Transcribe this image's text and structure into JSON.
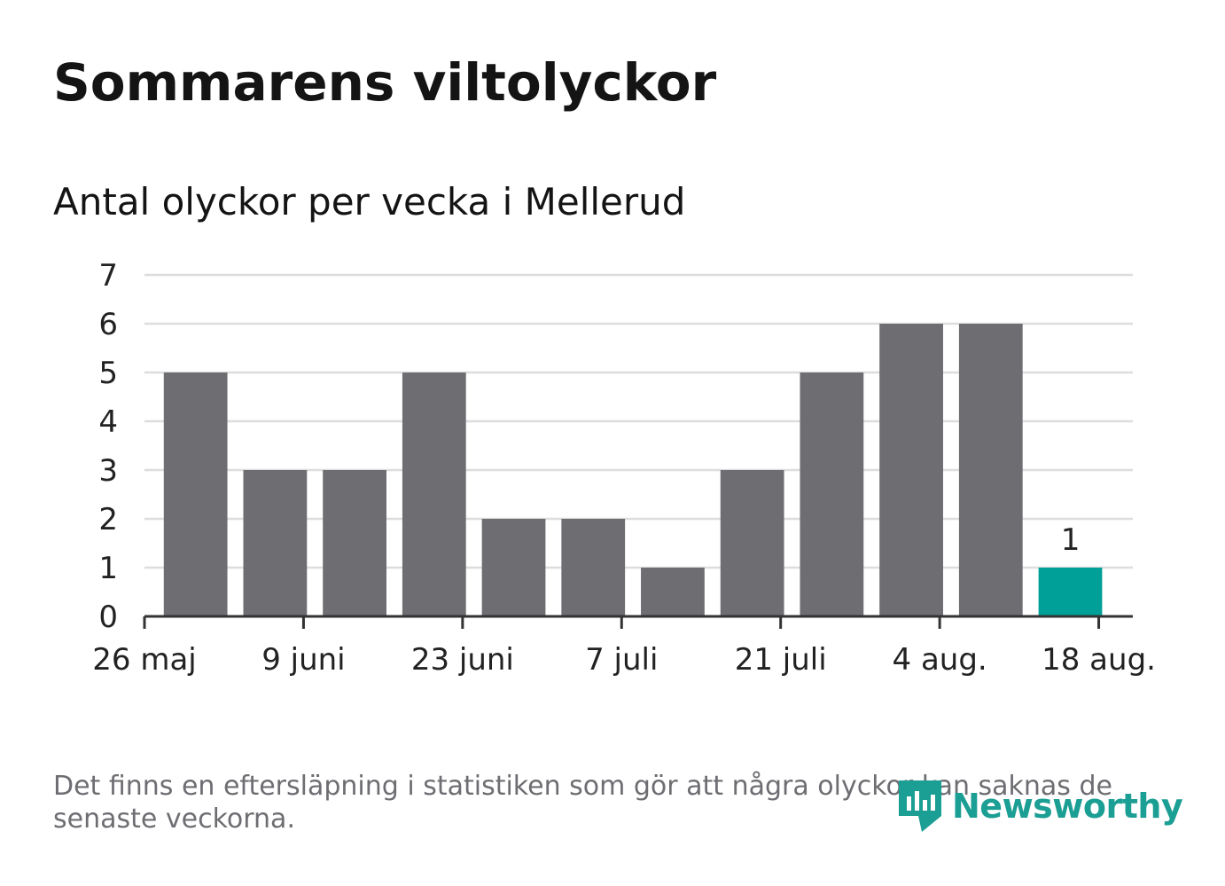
{
  "header": {
    "title": "Sommarens viltolyckor",
    "subtitle": "Antal olyckor per vecka i Mellerud"
  },
  "footnote": "Det finns en eftersläpning i statistiken som gör att några olyckor kan saknas de senaste veckorna.",
  "logo": {
    "text": "Newsworthy",
    "icon": "newsworthy-logo-icon"
  },
  "colors": {
    "bar": "#6e6d72",
    "highlight": "#00a099",
    "grid": "#dddddd",
    "axis": "#333333",
    "text": "#222222"
  },
  "chart_data": {
    "type": "bar",
    "x": [
      "2019-05-27",
      "2019-06-03",
      "2019-06-10",
      "2019-06-17",
      "2019-06-24",
      "2019-07-01",
      "2019-07-08",
      "2019-07-15",
      "2019-07-22",
      "2019-07-29",
      "2019-08-05",
      "2019-08-12"
    ],
    "values": [
      5,
      3,
      3,
      5,
      2,
      2,
      1,
      3,
      5,
      6,
      6,
      1
    ],
    "highlight_index": 11,
    "data_labels": [
      {
        "index": 11,
        "text": "1"
      }
    ],
    "ylim": [
      0,
      7
    ],
    "yticks": [
      "0",
      "1",
      "2",
      "3",
      "4",
      "5",
      "6",
      "7"
    ],
    "xlim": [
      "2019-05-26",
      "2019-08-21"
    ],
    "xticks": [
      {
        "date": "2019-05-26",
        "label": "26 maj"
      },
      {
        "date": "2019-06-09",
        "label": "9 juni"
      },
      {
        "date": "2019-06-23",
        "label": "23 juni"
      },
      {
        "date": "2019-07-07",
        "label": "7 juli"
      },
      {
        "date": "2019-07-21",
        "label": "21 juli"
      },
      {
        "date": "2019-08-04",
        "label": "4 aug."
      },
      {
        "date": "2019-08-18",
        "label": "18 aug."
      }
    ],
    "grid": true,
    "xlabel": "",
    "ylabel": ""
  }
}
